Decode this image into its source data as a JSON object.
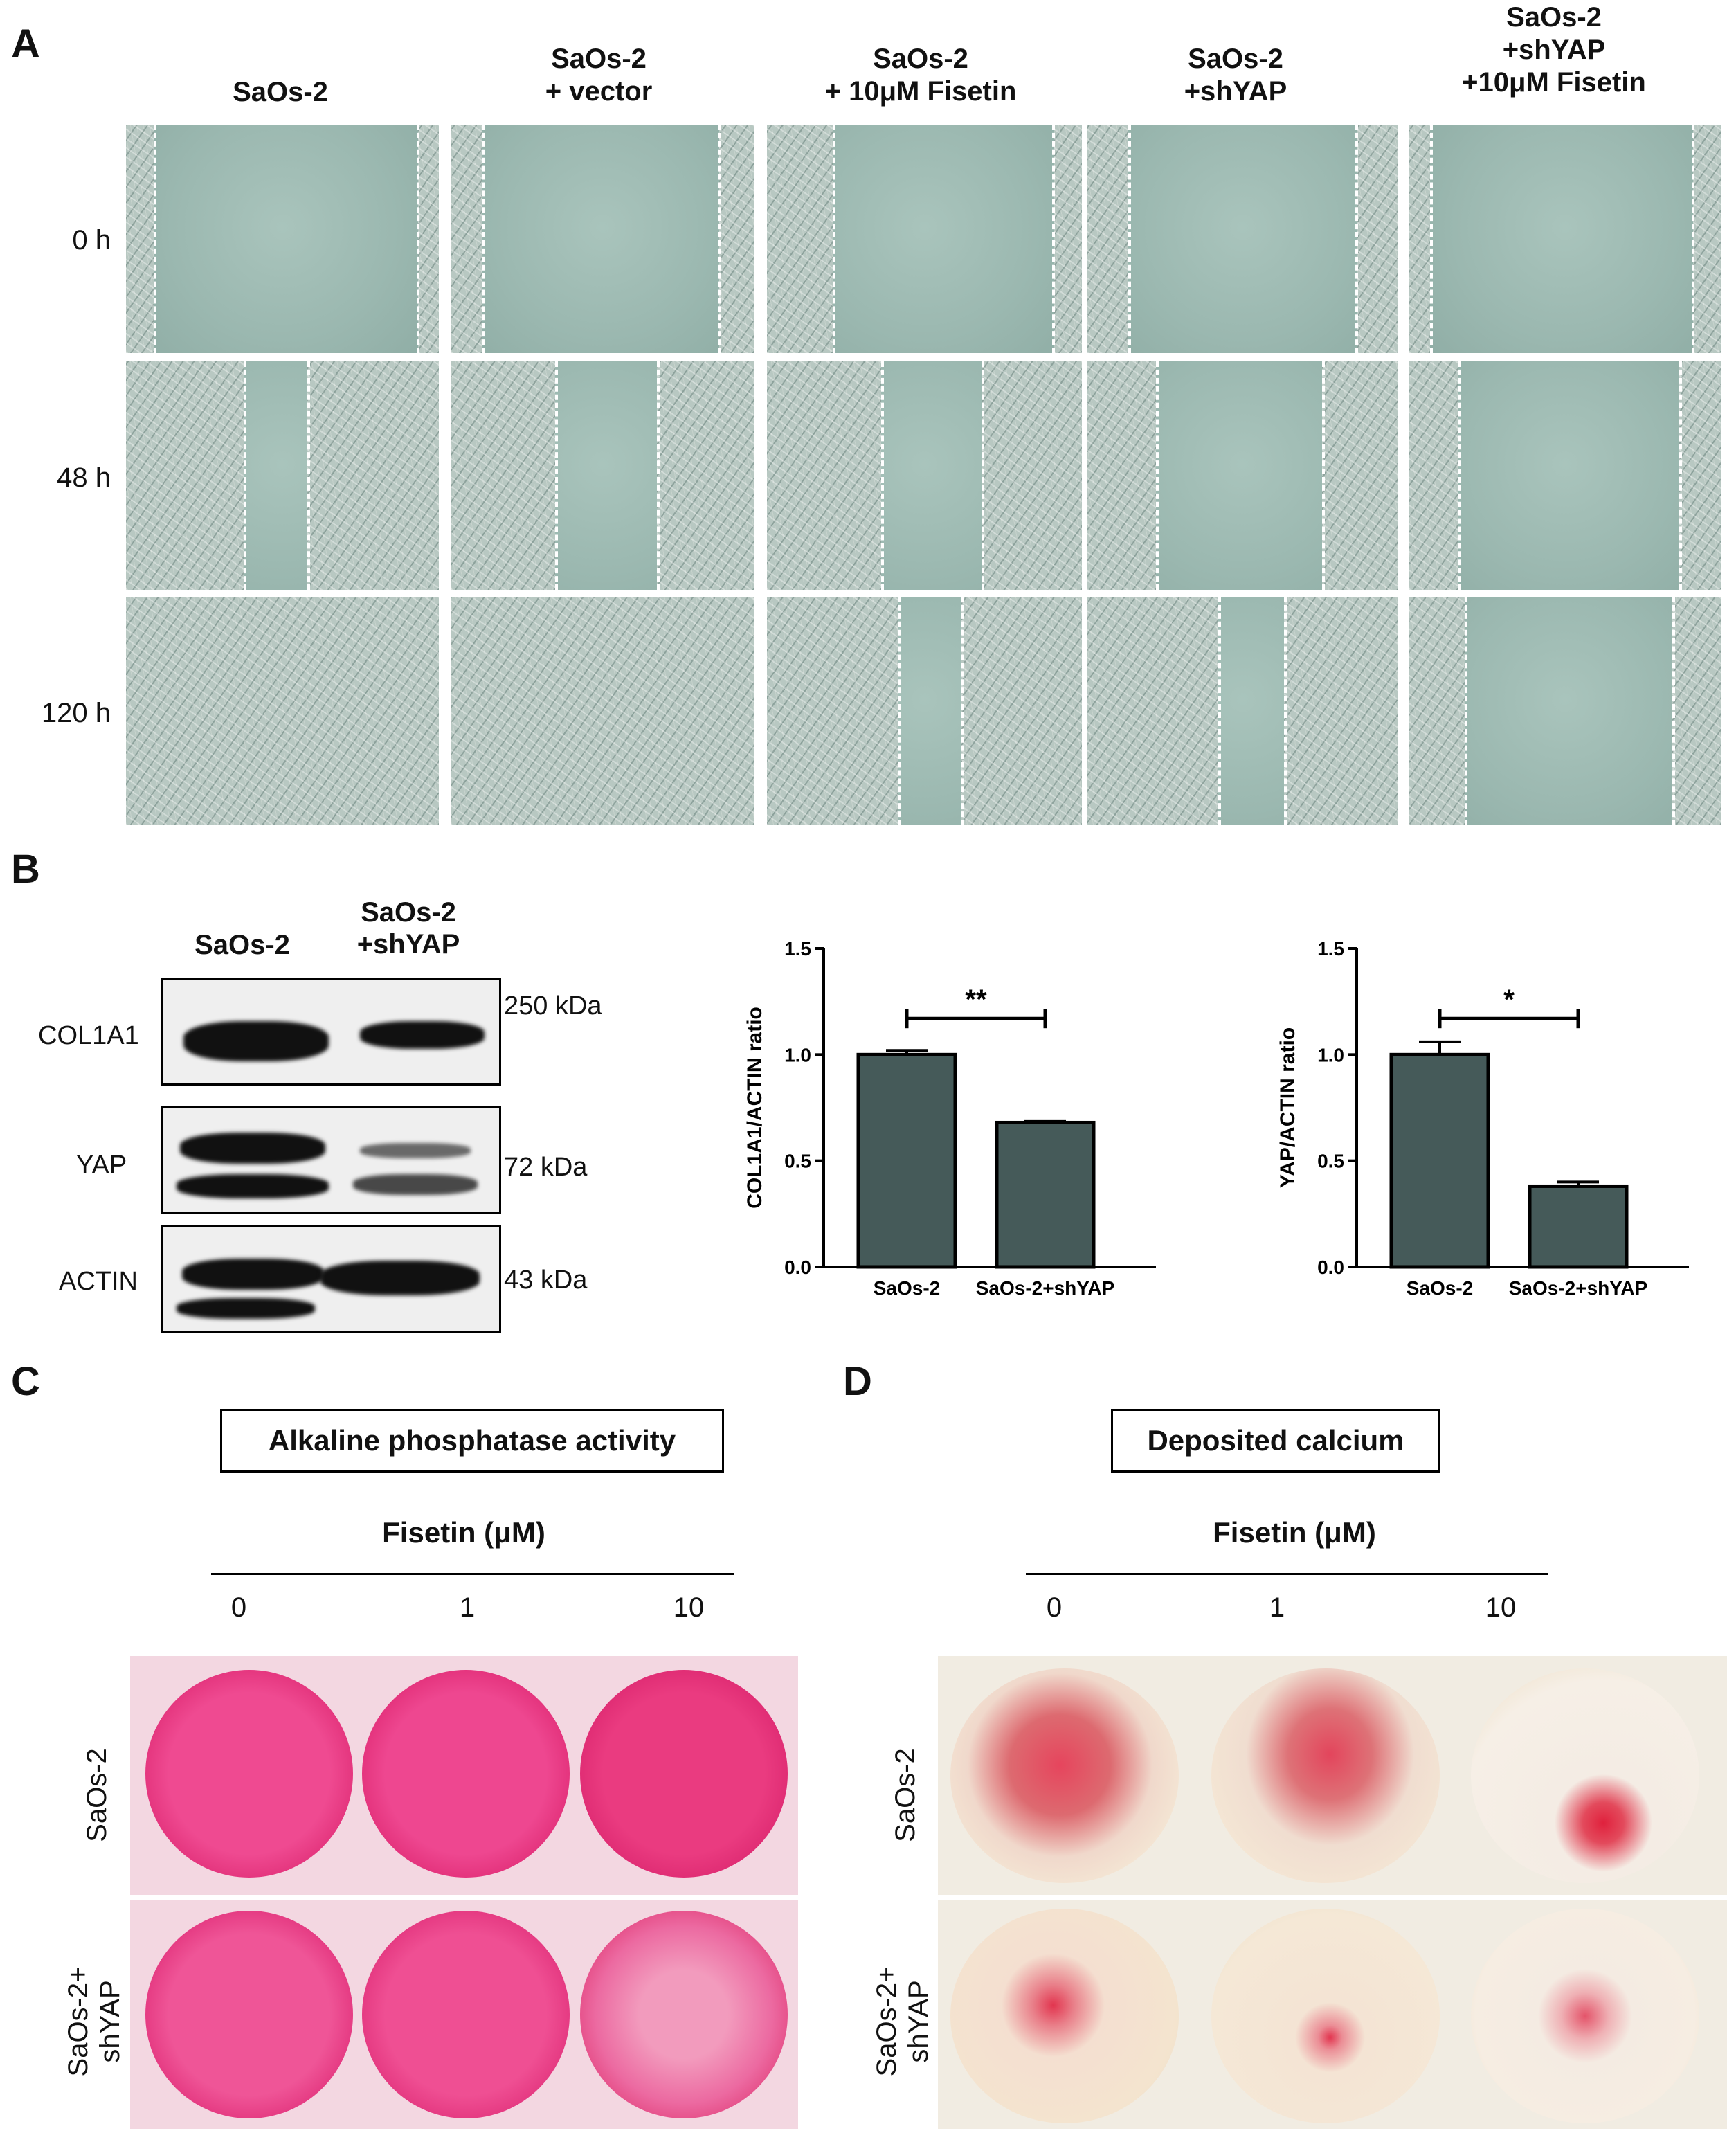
{
  "panel_a": {
    "letter": "A",
    "columns": [
      "SaOs-2",
      "SaOs-2\n+ vector",
      "SaOs-2\n+ 10μM Fisetin",
      "SaOs-2\n+shYAP",
      "SaOs-2\n+shYAP\n+10μM Fisetin"
    ],
    "rows": [
      "0 h",
      "48 h",
      "120 h"
    ]
  },
  "panel_b": {
    "letter": "B",
    "blot": {
      "lanes": [
        "SaOs-2",
        "SaOs-2\n+shYAP"
      ],
      "proteins": [
        {
          "name": "COL1A1",
          "kda": "250 kDa"
        },
        {
          "name": "YAP",
          "kda": "72 kDa"
        },
        {
          "name": "ACTIN",
          "kda": "43 kDa"
        }
      ]
    }
  },
  "chart_data": [
    {
      "type": "bar",
      "categories": [
        "SaOs-2",
        "SaOs-2+shYAP"
      ],
      "values": [
        1.0,
        0.68
      ],
      "errors": [
        0.02,
        0.005
      ],
      "ylabel": "COL1A1/ACTIN ratio",
      "ylim": [
        0,
        1.5
      ],
      "yticks": [
        "0.0",
        "0.5",
        "1.0",
        "1.5"
      ],
      "significance": "**",
      "bar_color": "#455a59"
    },
    {
      "type": "bar",
      "categories": [
        "SaOs-2",
        "SaOs-2+shYAP"
      ],
      "values": [
        1.0,
        0.38
      ],
      "errors": [
        0.06,
        0.02
      ],
      "ylabel": "YAP/ACTIN ratio",
      "ylim": [
        0,
        1.5
      ],
      "yticks": [
        "0.0",
        "0.5",
        "1.0",
        "1.5"
      ],
      "significance": "*",
      "bar_color": "#455a59"
    }
  ],
  "panel_c": {
    "letter": "C",
    "title": "Alkaline phosphatase activity",
    "fisetin_label": "Fisetin (μM)",
    "concentrations": [
      "0",
      "1",
      "10"
    ],
    "rows": [
      "SaOs-2",
      "SaOs-2+\nshYAP"
    ]
  },
  "panel_d": {
    "letter": "D",
    "title": "Deposited calcium",
    "fisetin_label": "Fisetin (μM)",
    "concentrations": [
      "0",
      "1",
      "10"
    ],
    "rows": [
      "SaOs-2",
      "SaOs-2+\nshYAP"
    ]
  },
  "colors": {
    "alp_pink": "#ec3f86",
    "calcium_red": "#e0243f",
    "plate_beige": "#efe6d2"
  }
}
